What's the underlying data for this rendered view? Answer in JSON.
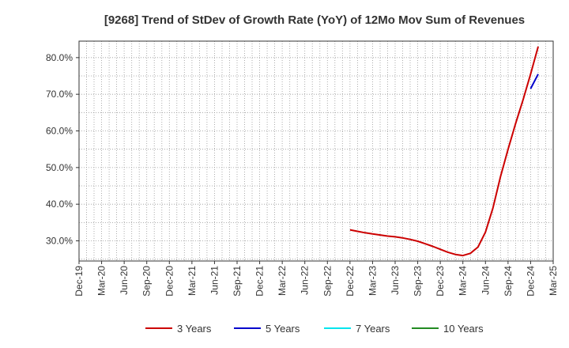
{
  "chart_data": {
    "type": "line",
    "title": "[9268]  Trend of StDev of Growth Rate (YoY) of 12Mo Mov Sum of Revenues",
    "xlabel": "",
    "ylabel": "",
    "x_ticks": [
      "Dec-19",
      "Mar-20",
      "Jun-20",
      "Sep-20",
      "Dec-20",
      "Mar-21",
      "Jun-21",
      "Sep-21",
      "Dec-21",
      "Mar-22",
      "Jun-22",
      "Sep-22",
      "Dec-22",
      "Mar-23",
      "Jun-23",
      "Sep-23",
      "Dec-23",
      "Mar-24",
      "Jun-24",
      "Sep-24",
      "Dec-24",
      "Mar-25"
    ],
    "y_ticks": [
      30,
      40,
      50,
      60,
      70,
      80
    ],
    "y_tick_labels": [
      "30.0%",
      "40.0%",
      "50.0%",
      "60.0%",
      "70.0%",
      "80.0%"
    ],
    "ylim": [
      24.5,
      84.5
    ],
    "x_range_months": [
      0,
      63
    ],
    "grid": true,
    "legend_position": "bottom",
    "series": [
      {
        "name": "3 Years",
        "color": "#cc0000",
        "points": [
          [
            36,
            33.0
          ],
          [
            37,
            32.6
          ],
          [
            38,
            32.2
          ],
          [
            39,
            31.9
          ],
          [
            40,
            31.6
          ],
          [
            41,
            31.3
          ],
          [
            42,
            31.1
          ],
          [
            43,
            30.8
          ],
          [
            44,
            30.4
          ],
          [
            45,
            29.9
          ],
          [
            46,
            29.2
          ],
          [
            47,
            28.5
          ],
          [
            48,
            27.7
          ],
          [
            49,
            26.9
          ],
          [
            50,
            26.3
          ],
          [
            51,
            26.0
          ],
          [
            52,
            26.6
          ],
          [
            53,
            28.3
          ],
          [
            54,
            32.4
          ],
          [
            55,
            39.0
          ],
          [
            56,
            47.5
          ],
          [
            57,
            55.0
          ],
          [
            58,
            62.0
          ],
          [
            59,
            68.5
          ],
          [
            60,
            75.5
          ],
          [
            61,
            83.0
          ]
        ]
      },
      {
        "name": "5 Years",
        "color": "#0000cc",
        "points": [
          [
            60,
            71.5
          ],
          [
            61,
            75.5
          ]
        ]
      },
      {
        "name": "7 Years",
        "color": "#00e5ee",
        "points": []
      },
      {
        "name": "10 Years",
        "color": "#228b22",
        "points": []
      }
    ]
  }
}
